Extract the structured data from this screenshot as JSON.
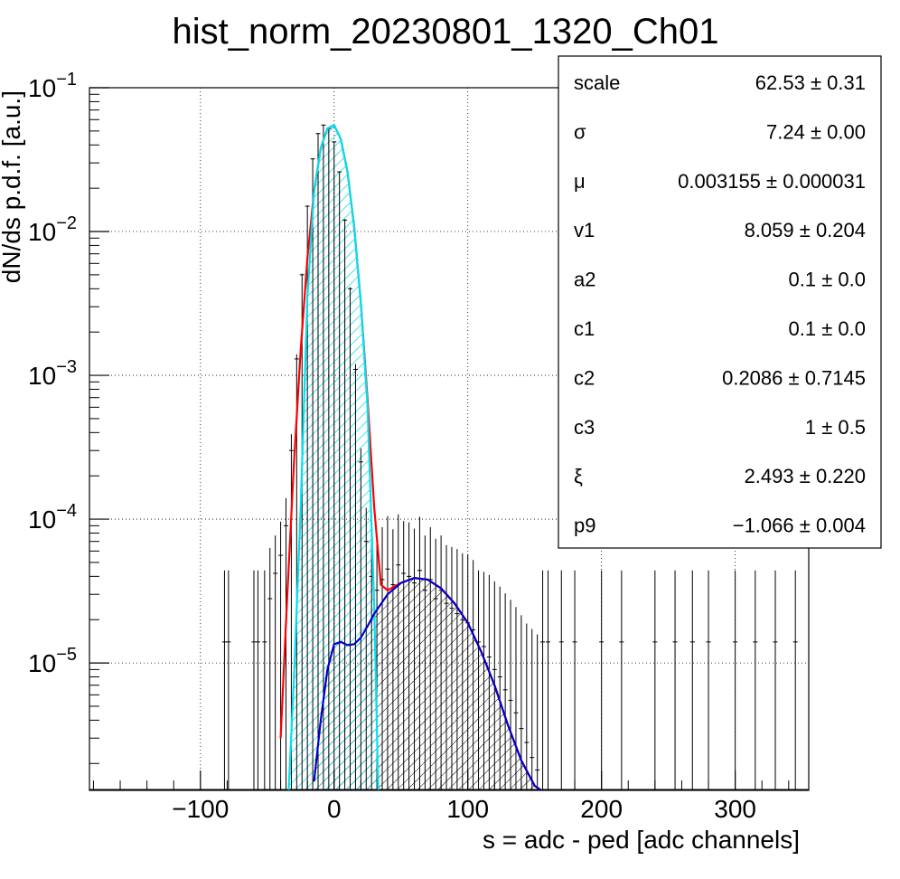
{
  "chart_data": {
    "type": "histogram",
    "title": "hist_norm_20230801_1320_Ch01",
    "xlabel": "s = adc - ped [adc channels]",
    "ylabel": "dN/ds p.d.f. [a.u.]",
    "xlim": [
      -183,
      355
    ],
    "ylim": [
      1.3e-06,
      0.1
    ],
    "yscale": "log",
    "grid": true,
    "x_ticks": [
      -100,
      0,
      100,
      200,
      300
    ],
    "x_tick_labels": [
      "−100",
      "0",
      "100",
      "200",
      "300"
    ],
    "y_ticks": [
      1e-05,
      0.0001,
      0.001,
      0.01,
      0.1
    ],
    "y_tick_labels": [
      {
        "base": "10",
        "exp": "−5"
      },
      {
        "base": "10",
        "exp": "−4"
      },
      {
        "base": "10",
        "exp": "−3"
      },
      {
        "base": "10",
        "exp": "−2"
      },
      {
        "base": "10",
        "exp": "−1"
      }
    ],
    "series": [
      {
        "color": "#000000",
        "style": "histogram with error bars",
        "x": [
          -82,
          -79,
          -60,
          -57,
          -52,
          -48,
          -44,
          -40,
          -36,
          -32,
          -28,
          -24,
          -20,
          -16,
          -12,
          -8,
          -4,
          0,
          4,
          8,
          12,
          16,
          20,
          24,
          28,
          32,
          36,
          40,
          44,
          48,
          52,
          56,
          60,
          64,
          68,
          72,
          76,
          80,
          84,
          88,
          92,
          96,
          100,
          104,
          108,
          112,
          116,
          120,
          124,
          128,
          132,
          136,
          140,
          144,
          148,
          152,
          156,
          160,
          170,
          180,
          200,
          215,
          240,
          255,
          268,
          280,
          300,
          315,
          330,
          345
        ],
        "y": [
          1.4e-05,
          1.4e-05,
          1.4e-05,
          1.4e-05,
          1.4e-05,
          2.8e-05,
          4.2e-05,
          5.6e-05,
          9e-05,
          0.0003,
          0.0013,
          0.005,
          0.015,
          0.032,
          0.048,
          0.055,
          0.052,
          0.042,
          0.026,
          0.012,
          0.004,
          0.0011,
          0.00025,
          7e-05,
          4e-05,
          3.2e-05,
          3.8e-05,
          4.5e-05,
          3.5e-05,
          4.8e-05,
          4.2e-05,
          4e-05,
          3.6e-05,
          4.4e-05,
          3.2e-05,
          3.8e-05,
          2.8e-05,
          3.2e-05,
          2.6e-05,
          2.4e-05,
          2.2e-05,
          2e-05,
          1.9e-05,
          1.7e-05,
          1.4e-05,
          1.3e-05,
          1.1e-05,
          9e-06,
          8e-06,
          6.5e-06,
          5.5e-06,
          4.5e-06,
          3.5e-06,
          2.8e-06,
          2.2e-06,
          1.8e-06,
          1.4e-05,
          1.4e-05,
          1.4e-05,
          1.4e-05,
          1.4e-05,
          1.4e-05,
          1.4e-05,
          1.4e-05,
          1.4e-05,
          1.4e-05,
          1.4e-05,
          1.4e-05,
          1.4e-05,
          1.4e-05
        ],
        "yerr_up": [
          3e-05,
          3e-05,
          3e-05,
          3e-05,
          3e-05,
          3.5e-05,
          3.5e-05,
          4e-05,
          5e-05,
          9e-05,
          0.0001,
          0.0001,
          0.0002,
          0.0003,
          0.0003,
          0.0003,
          0.0003,
          0.0003,
          0.0002,
          0.0002,
          0.0001,
          0.0001,
          6e-05,
          5e-05,
          5e-05,
          4.5e-05,
          5e-05,
          6e-05,
          5e-05,
          6e-05,
          5.5e-05,
          5.5e-05,
          5e-05,
          6e-05,
          4.5e-05,
          5e-05,
          4.5e-05,
          4.5e-05,
          4e-05,
          4e-05,
          4e-05,
          3.8e-05,
          3.8e-05,
          3.5e-05,
          3e-05,
          3e-05,
          3e-05,
          2.8e-05,
          2.6e-05,
          2.4e-05,
          2.2e-05,
          2e-05,
          1.8e-05,
          1.6e-05,
          1.5e-05,
          1.4e-05,
          3e-05,
          3e-05,
          3e-05,
          3e-05,
          3e-05,
          3e-05,
          3e-05,
          3e-05,
          3e-05,
          3e-05,
          3e-05,
          3e-05,
          3e-05,
          3e-05
        ]
      },
      {
        "color": "#ff0000",
        "style": "total fit curve",
        "x": [
          -40,
          -35,
          -30,
          -25,
          -20,
          -15,
          -10,
          -5,
          0,
          5,
          10,
          15,
          20,
          25,
          30,
          35,
          40,
          50,
          60,
          70,
          80,
          90,
          100,
          110,
          120,
          130,
          140,
          150,
          155
        ],
        "y": [
          3e-06,
          3e-05,
          0.00025,
          0.0015,
          0.0065,
          0.019,
          0.038,
          0.052,
          0.055,
          0.044,
          0.026,
          0.0108,
          0.0032,
          0.00068,
          0.00012,
          3.5e-05,
          3.2e-05,
          3.6e-05,
          3.9e-05,
          3.8e-05,
          3.3e-05,
          2.6e-05,
          1.9e-05,
          1.2e-05,
          7e-06,
          3.7e-06,
          2.1e-06,
          1.4e-06,
          1.3e-06
        ]
      },
      {
        "color": "#00e0f0",
        "style": "pedestal component, hatched fill",
        "x": [
          -34,
          -30,
          -25,
          -20,
          -15,
          -10,
          -5,
          0,
          5,
          10,
          15,
          20,
          25,
          30,
          33
        ],
        "y": [
          1.3e-06,
          8e-06,
          0.00012,
          0.0035,
          0.019,
          0.038,
          0.052,
          0.055,
          0.044,
          0.026,
          0.0108,
          0.0032,
          0.0006,
          2.5e-05,
          1.3e-06
        ]
      },
      {
        "color": "#0000cc",
        "style": "signal component, hatched fill",
        "x": [
          -15,
          -10,
          -5,
          0,
          5,
          10,
          15,
          20,
          25,
          30,
          40,
          50,
          60,
          70,
          80,
          90,
          100,
          110,
          120,
          130,
          140,
          150,
          155
        ],
        "y": [
          1.5e-06,
          4e-06,
          9e-06,
          1.35e-05,
          1.4e-05,
          1.33e-05,
          1.35e-05,
          1.5e-05,
          1.8e-05,
          2.2e-05,
          3e-05,
          3.6e-05,
          3.9e-05,
          3.8e-05,
          3.3e-05,
          2.6e-05,
          1.9e-05,
          1.2e-05,
          7e-06,
          3.7e-06,
          2.1e-06,
          1.4e-06,
          1.3e-06
        ]
      }
    ]
  },
  "stats_box": {
    "rows": [
      {
        "name": "scale",
        "value": "62.53",
        "pm": "±",
        "error": "0.31"
      },
      {
        "name": "σ",
        "value": "7.24",
        "pm": "±",
        "error": "0.00"
      },
      {
        "name": "μ",
        "value": "0.003155",
        "pm": "±",
        "error": "0.000031"
      },
      {
        "name": "v1",
        "value": "8.059",
        "pm": "±",
        "error": "0.204"
      },
      {
        "name": "a2",
        "value": "0.1",
        "pm": "±",
        "error": "0.0"
      },
      {
        "name": "c1",
        "value": "0.1",
        "pm": "±",
        "error": "0.0"
      },
      {
        "name": "c2",
        "value": "0.2086",
        "pm": "±",
        "error": "0.7145"
      },
      {
        "name": "c3",
        "value": "1",
        "pm": "±",
        "error": "0.5"
      },
      {
        "name": "ξ",
        "value": "2.493",
        "pm": "±",
        "error": "0.220"
      },
      {
        "name": "p9",
        "value": "−1.066",
        "pm": "±",
        "error": "0.004"
      }
    ]
  }
}
